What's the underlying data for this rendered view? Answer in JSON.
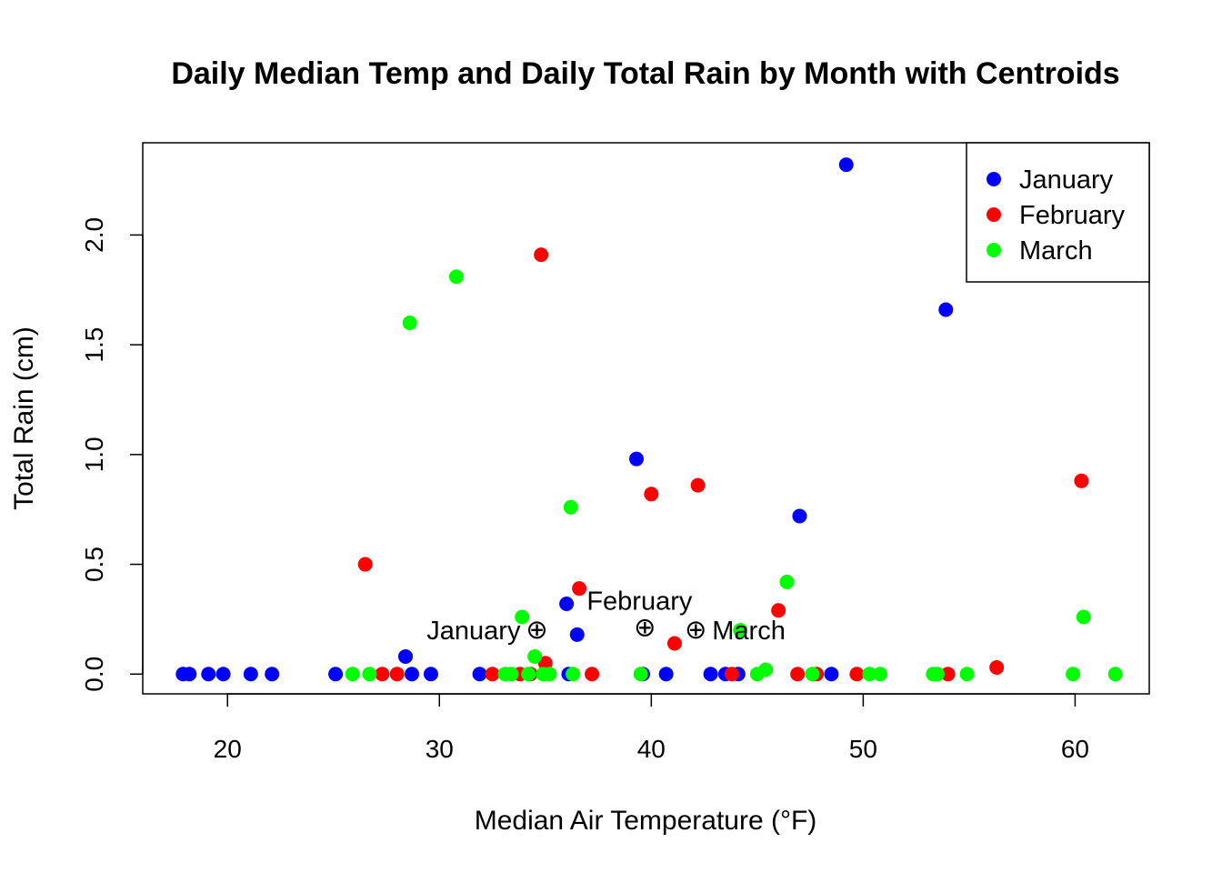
{
  "chart_data": {
    "type": "scatter",
    "title": "Daily Median Temp and Daily Total Rain by Month with Centroids",
    "xlabel": "Median Air Temperature (°F)",
    "ylabel": "Total Rain (cm)",
    "xlim": [
      16,
      63.5
    ],
    "ylim": [
      -0.09,
      2.42
    ],
    "xticks": [
      20,
      30,
      40,
      50,
      60
    ],
    "yticks": [
      0.0,
      0.5,
      1.0,
      1.5,
      2.0
    ],
    "xtick_labels": [
      "20",
      "30",
      "40",
      "50",
      "60"
    ],
    "ytick_labels": [
      "0.0",
      "0.5",
      "1.0",
      "1.5",
      "2.0"
    ],
    "grid": false,
    "legend_position": "top-right",
    "series": [
      {
        "name": "January",
        "color": "#0000ff",
        "x": [
          17.9,
          18.2,
          19.1,
          19.8,
          21.1,
          22.1,
          25.1,
          28.4,
          28.7,
          29.6,
          31.9,
          36.0,
          36.1,
          36.5,
          39.3,
          39.6,
          40.7,
          42.8,
          43.5,
          44.1,
          47.0,
          48.5,
          49.2,
          53.9
        ],
        "y": [
          0,
          0,
          0,
          0,
          0,
          0,
          0,
          0.08,
          0,
          0,
          0,
          0.32,
          0,
          0.18,
          0.98,
          0,
          0,
          0,
          0,
          0,
          0.72,
          0,
          2.32,
          1.66
        ]
      },
      {
        "name": "February",
        "color": "#ff0000",
        "x": [
          26.5,
          27.3,
          28.0,
          32.5,
          33.8,
          34.3,
          34.8,
          35.0,
          36.6,
          37.2,
          40.0,
          41.1,
          42.2,
          43.8,
          46.0,
          46.9,
          47.8,
          49.7,
          54.0,
          56.3,
          60.3
        ],
        "y": [
          0.5,
          0,
          0,
          0,
          0,
          0,
          1.91,
          0.05,
          0.39,
          0,
          0.82,
          0.14,
          0.86,
          0,
          0.29,
          0,
          0,
          0,
          0,
          0.03,
          0.88
        ]
      },
      {
        "name": "March",
        "color": "#00ff00",
        "x": [
          25.9,
          26.7,
          28.6,
          30.8,
          33.1,
          33.4,
          33.9,
          34.2,
          34.5,
          34.9,
          35.2,
          36.2,
          36.3,
          39.5,
          44.2,
          45.0,
          45.4,
          46.4,
          47.6,
          50.3,
          50.8,
          53.3,
          53.5,
          54.9,
          59.9,
          60.4,
          61.9
        ],
        "y": [
          0,
          0,
          1.6,
          1.81,
          0,
          0,
          0.26,
          0,
          0.08,
          0,
          0,
          0.76,
          0,
          0,
          0.2,
          0,
          0.02,
          0.42,
          0,
          0,
          0,
          0,
          0,
          0,
          0,
          0.26,
          0
        ]
      }
    ],
    "centroids": [
      {
        "label": "January",
        "symbol": "⊕",
        "x": 34.6,
        "y": 0.2,
        "label_side": "left"
      },
      {
        "label": "February",
        "symbol": "⊕",
        "x": 39.7,
        "y": 0.21,
        "label_side": "top-right"
      },
      {
        "label": "March",
        "symbol": "⊕",
        "x": 42.1,
        "y": 0.2,
        "label_side": "right"
      }
    ]
  }
}
